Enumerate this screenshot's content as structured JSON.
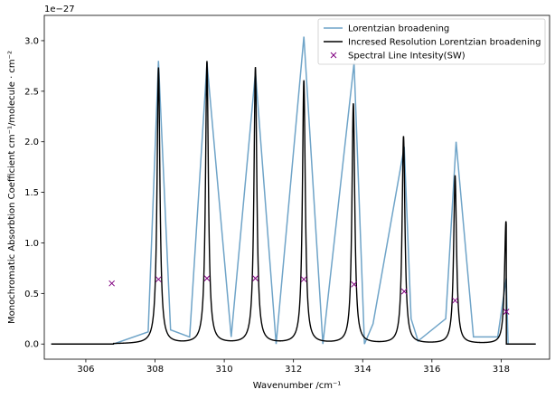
{
  "chart_data": {
    "type": "line",
    "offset_label": "1e−27",
    "xlabel": "Wavenumber /cm⁻¹",
    "ylabel": "Monochromatic Absorbtion Coefficient cm⁻¹/molecule · cm⁻²",
    "xlim": [
      304.8,
      319.4
    ],
    "ylim": [
      -0.15,
      3.25
    ],
    "x_ticks": [
      306,
      308,
      310,
      312,
      314,
      316,
      318
    ],
    "x_tick_labels": [
      "306",
      "308",
      "310",
      "312",
      "314",
      "316",
      "318"
    ],
    "y_ticks": [
      0.0,
      0.5,
      1.0,
      1.5,
      2.0,
      2.5,
      3.0
    ],
    "y_tick_labels": [
      "0.0",
      "0.5",
      "1.0",
      "1.5",
      "2.0",
      "2.5",
      "3.0"
    ],
    "legend_position": "top-right",
    "series": [
      {
        "name": "Lorentzian broadening",
        "color": "#6fa4c8",
        "style": "line",
        "x": [
          305.0,
          306.8,
          307.8,
          308.1,
          308.45,
          309.0,
          309.5,
          310.2,
          310.9,
          311.5,
          312.3,
          312.85,
          313.75,
          314.05,
          314.3,
          315.2,
          315.4,
          315.6,
          316.4,
          316.7,
          317.2,
          317.9,
          318.15,
          318.2,
          319.0
        ],
        "y": [
          0.0,
          0.0,
          0.12,
          2.8,
          0.14,
          0.07,
          2.78,
          0.07,
          2.69,
          0.0,
          3.04,
          0.0,
          2.78,
          0.0,
          0.2,
          1.95,
          0.25,
          0.03,
          0.25,
          2.0,
          0.07,
          0.07,
          0.65,
          0.0,
          0.0
        ]
      },
      {
        "name": "Incresed Resolution Lorentzian broadening",
        "color": "#000000",
        "style": "line",
        "peaks": [
          {
            "center": 308.1,
            "height": 2.73
          },
          {
            "center": 309.5,
            "height": 2.79
          },
          {
            "center": 310.9,
            "height": 2.73
          },
          {
            "center": 312.3,
            "height": 2.6
          },
          {
            "center": 313.73,
            "height": 2.37
          },
          {
            "center": 315.18,
            "height": 2.05
          },
          {
            "center": 316.67,
            "height": 1.66
          },
          {
            "center": 318.14,
            "height": 1.21
          }
        ],
        "x_range": [
          305.0,
          319.0
        ],
        "flat_until": 306.8,
        "cutoff_after": 318.15
      },
      {
        "name": "Spectral Line Intesity(SW)",
        "color": "#800080",
        "style": "marker-x",
        "x": [
          306.75,
          308.1,
          309.5,
          310.9,
          312.3,
          313.75,
          315.2,
          316.67,
          318.15
        ],
        "y": [
          0.6,
          0.64,
          0.65,
          0.65,
          0.64,
          0.59,
          0.52,
          0.43,
          0.32
        ]
      }
    ]
  }
}
